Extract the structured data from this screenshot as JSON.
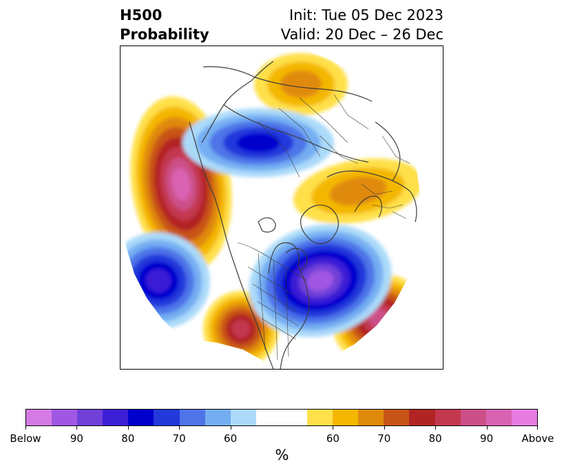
{
  "title": {
    "left_line1": "H500",
    "left_line2": "Probability",
    "right_line1": "Init: Tue 05 Dec 2023",
    "right_line2": "Valid: 20 Dec – 26 Dec"
  },
  "map": {
    "projection": "north-polar-stereographic",
    "coastline_color": "#3c3c3c",
    "anomalies": [
      {
        "name": "Western Canada / Gulf of Alaska",
        "sign": "above",
        "peak_percent": 95
      },
      {
        "name": "Southwestern United States",
        "sign": "above",
        "peak_percent": 85
      },
      {
        "name": "Central North Atlantic",
        "sign": "above",
        "peak_percent": 90
      },
      {
        "name": "Eastern Siberia",
        "sign": "above",
        "peak_percent": 70
      },
      {
        "name": "Northwestern Eurasia / Barents",
        "sign": "above",
        "peak_percent": 70
      },
      {
        "name": "Eastern Canada / Hudson Bay",
        "sign": "below",
        "peak_percent": 92
      },
      {
        "name": "North Pacific",
        "sign": "below",
        "peak_percent": 82
      },
      {
        "name": "Central Asia",
        "sign": "below",
        "peak_percent": 82
      }
    ]
  },
  "colorbar": {
    "colors": [
      "#d67ae6",
      "#a057e3",
      "#7040d9",
      "#3b1fd6",
      "#0000cd",
      "#2439db",
      "#4e74e8",
      "#74aef2",
      "#abdaf9",
      "#ffffff",
      "#ffffff",
      "#ffe04a",
      "#f4b700",
      "#e08a0c",
      "#c85418",
      "#b22424",
      "#c3384f",
      "#cc4f87",
      "#d962b3",
      "#e97ce3"
    ],
    "tick_labels": [
      "Below",
      "90",
      "80",
      "70",
      "60",
      "60",
      "70",
      "80",
      "90",
      "Above"
    ],
    "unit": "%"
  }
}
